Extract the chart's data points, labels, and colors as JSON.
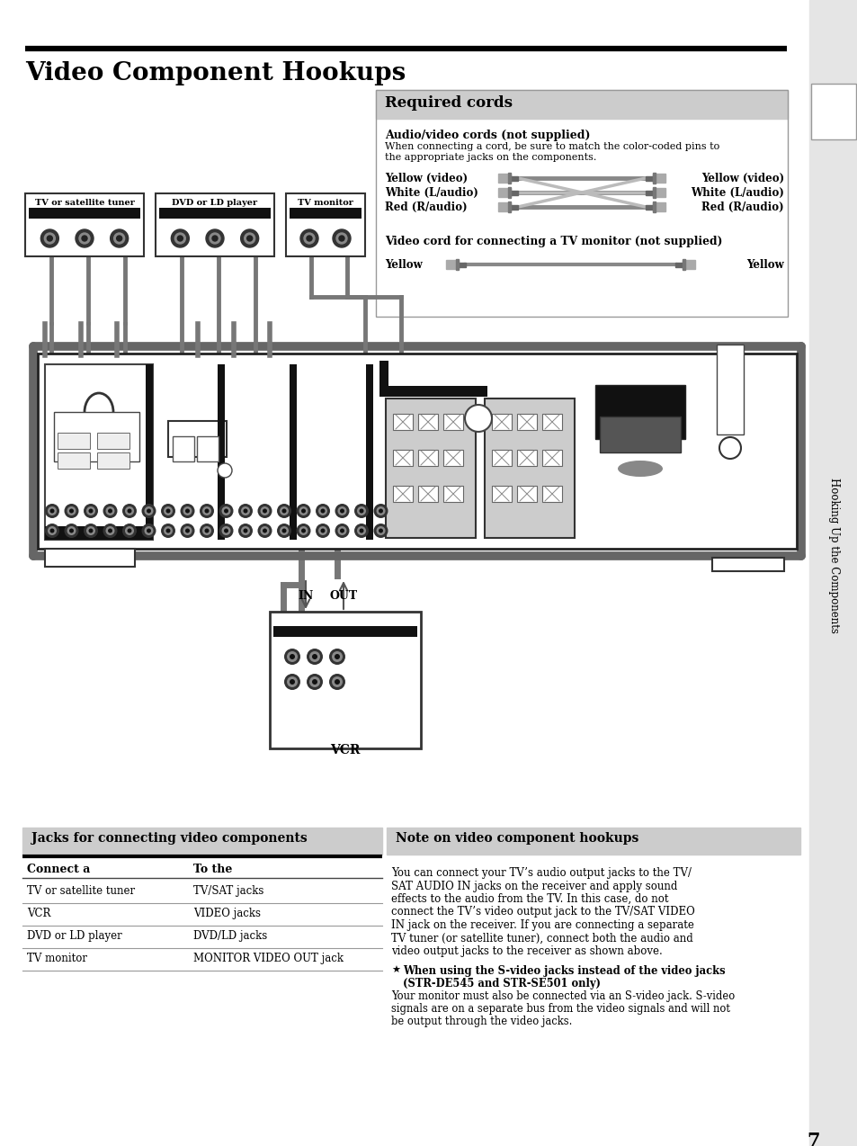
{
  "title": "Video Component Hookups",
  "page_number": "7",
  "bg": "#ffffff",
  "sidebar_text": "Hooking Up the Components",
  "req_title": "Required cords",
  "av_title": "Audio/video cords (not supplied)",
  "av_desc1": "When connecting a cord, be sure to match the color-coded pins to",
  "av_desc2": "the appropriate jacks on the components.",
  "cord_left": [
    "Yellow (video)",
    "White (L/audio)",
    "Red (R/audio)"
  ],
  "cord_right": [
    "Yellow (video)",
    "White (L/audio)",
    "Red (R/audio)"
  ],
  "vid_cord_title": "Video cord for connecting a TV monitor (not supplied)",
  "yellow_l": "Yellow",
  "yellow_r": "Yellow",
  "comp_labels": [
    "TV or satellite tuner",
    "DVD or LD player",
    "TV monitor"
  ],
  "tbl_title": "Jacks for connecting video components",
  "col1": "Connect a",
  "col2": "To the",
  "rows": [
    [
      "TV or satellite tuner",
      "TV/SAT jacks"
    ],
    [
      "VCR",
      "VIDEO jacks"
    ],
    [
      "DVD or LD player",
      "DVD/LD jacks"
    ],
    [
      "TV monitor",
      "MONITOR VIDEO OUT jack"
    ]
  ],
  "note_title": "Note on video component hookups",
  "note_lines": [
    "You can connect your TV’s audio output jacks to the TV/",
    "SAT AUDIO IN jacks on the receiver and apply sound",
    "effects to the audio from the TV. In this case, do not",
    "connect the TV’s video output jack to the TV/SAT VIDEO",
    "IN jack on the receiver. If you are connecting a separate",
    "TV tuner (or satellite tuner), connect both the audio and",
    "video output jacks to the receiver as shown above."
  ],
  "svid_b1": "When using the S-video jacks instead of the video jacks",
  "svid_b2": "(STR-DE545 and STR-SE501 only)",
  "svid_t1": "Your monitor must also be connected via an S-video jack. S-video",
  "svid_t2": "signals are on a separate bus from the video signals and will not",
  "svid_t3": "be output through the video jacks.",
  "vcr_lbl": "VCR",
  "in_lbl": "IN",
  "out_lbl": "OUT"
}
